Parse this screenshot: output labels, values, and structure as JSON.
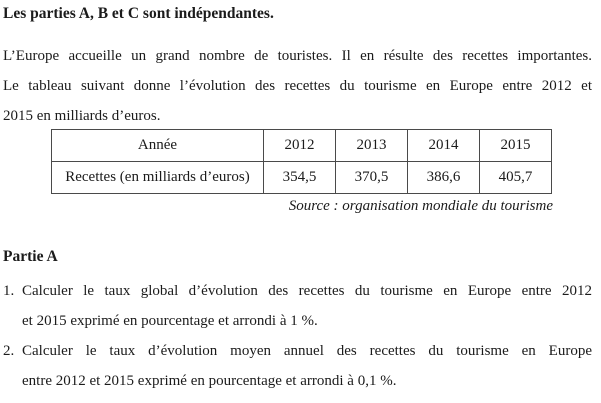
{
  "doc": {
    "heading": "Les parties A, B et C sont indépendantes.",
    "intro": {
      "lines": [
        "L’Europe accueille un grand nombre de touristes. Il en résulte des recettes importantes.",
        "Le tableau suivant donne l’évolution des recettes du tourisme en Europe entre 2012 et",
        "2015 en milliards d’euros."
      ]
    },
    "table": {
      "header_row": [
        "Année",
        "2012",
        "2013",
        "2014",
        "2015"
      ],
      "data_row": [
        "Recettes (en milliards d’euros)",
        "354,5",
        "370,5",
        "386,6",
        "405,7"
      ],
      "source": "Source : organisation mondiale du tourisme"
    },
    "part_a": {
      "heading": "Partie A",
      "items": [
        {
          "number": "1.",
          "lines": [
            "Calculer le taux global d’évolution des recettes du tourisme en Europe entre 2012",
            "et 2015 exprimé en pourcentage et arrondi à 1 %."
          ]
        },
        {
          "number": "2.",
          "lines": [
            "Calculer le taux d’évolution  moyen annuel  des recettes du tourisme en Europe",
            "entre 2012 et 2015 exprimé en pourcentage et arrondi à 0,1 %."
          ]
        }
      ]
    }
  }
}
